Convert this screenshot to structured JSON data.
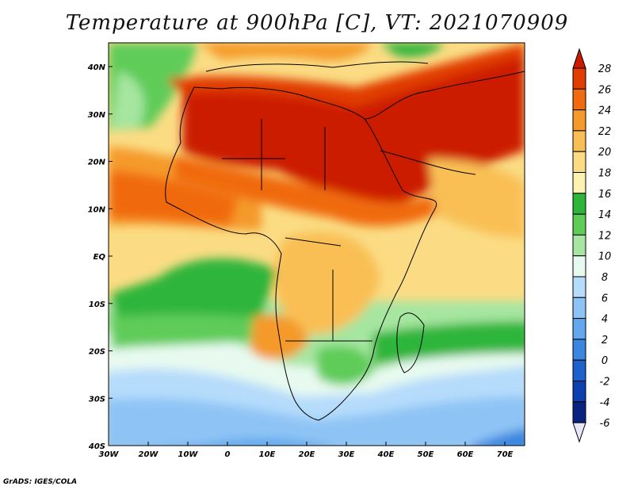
{
  "title": "Temperature at 900hPa [C], VT: 2021070909",
  "footer": "GrADS: IGES/COLA",
  "lat_ticks": [
    "40N",
    "30N",
    "20N",
    "10N",
    "EQ",
    "10S",
    "20S",
    "30S",
    "40S"
  ],
  "lon_ticks": [
    "30W",
    "20W",
    "10W",
    "0",
    "10E",
    "20E",
    "30E",
    "40E",
    "50E",
    "60E",
    "70E"
  ],
  "colorbar": {
    "labels": [
      "28",
      "26",
      "24",
      "22",
      "20",
      "18",
      "16",
      "14",
      "12",
      "10",
      "8",
      "6",
      "4",
      "2",
      "0",
      "-2",
      "-4",
      "-6"
    ],
    "colors": [
      "#cc1a00",
      "#e13d00",
      "#f06a10",
      "#f59a2a",
      "#f9bf55",
      "#fbdc84",
      "#fdf2b0",
      "#2fb53a",
      "#5fcc58",
      "#a6e6a0",
      "#e8faf0",
      "#b6dcfb",
      "#8ec4f5",
      "#63a8ee",
      "#3b86e0",
      "#1d62cc",
      "#0c3fb0",
      "#0a2280"
    ]
  }
}
